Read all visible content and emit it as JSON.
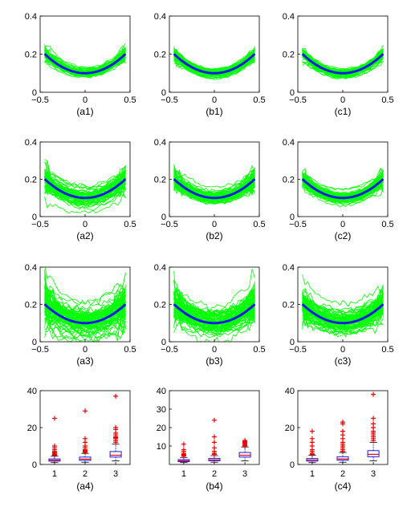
{
  "chart_data": [
    {
      "id": "a1",
      "type": "line",
      "caption": "(a1)",
      "xlim": [
        -0.5,
        0.5
      ],
      "ylim": [
        0,
        0.4
      ],
      "xticks": [
        "−0.5",
        "0",
        "0.5"
      ],
      "yticks": [
        "0",
        "0.2",
        "0.4"
      ],
      "mean_curve": {
        "x": [
          -0.45,
          -0.3,
          -0.15,
          0,
          0.15,
          0.3,
          0.45
        ],
        "y": [
          0.2,
          0.155,
          0.115,
          0.1,
          0.115,
          0.155,
          0.2
        ]
      },
      "samples": {
        "count": 60,
        "spread": 0.025,
        "color": "#00ff00"
      },
      "mean_color": "#1a1ae6"
    },
    {
      "id": "b1",
      "type": "line",
      "caption": "(b1)",
      "xlim": [
        -0.5,
        0.5
      ],
      "ylim": [
        0,
        0.4
      ],
      "xticks": [
        "−0.5",
        "0",
        "0.5"
      ],
      "yticks": [
        "0",
        "0.2",
        "0.4"
      ],
      "mean_curve": {
        "x": [
          -0.45,
          -0.3,
          -0.15,
          0,
          0.15,
          0.3,
          0.45
        ],
        "y": [
          0.2,
          0.155,
          0.115,
          0.1,
          0.115,
          0.155,
          0.2
        ]
      },
      "samples": {
        "count": 60,
        "spread": 0.02,
        "color": "#00ff00"
      },
      "mean_color": "#1a1ae6"
    },
    {
      "id": "c1",
      "type": "line",
      "caption": "(c1)",
      "xlim": [
        -0.5,
        0.5
      ],
      "ylim": [
        0,
        0.4
      ],
      "xticks": [
        "−0.5",
        "0",
        "0.5"
      ],
      "yticks": [
        "0",
        "0.2",
        "0.4"
      ],
      "mean_curve": {
        "x": [
          -0.45,
          -0.3,
          -0.15,
          0,
          0.15,
          0.3,
          0.45
        ],
        "y": [
          0.2,
          0.155,
          0.115,
          0.1,
          0.115,
          0.155,
          0.2
        ]
      },
      "samples": {
        "count": 60,
        "spread": 0.018,
        "color": "#00ff00"
      },
      "mean_color": "#1a1ae6"
    },
    {
      "id": "a2",
      "type": "line",
      "caption": "(a2)",
      "xlim": [
        -0.5,
        0.5
      ],
      "ylim": [
        0,
        0.4
      ],
      "xticks": [
        "−0.5",
        "0",
        "0.5"
      ],
      "yticks": [
        "0",
        "0.2",
        "0.4"
      ],
      "mean_curve": {
        "x": [
          -0.45,
          -0.3,
          -0.15,
          0,
          0.15,
          0.3,
          0.45
        ],
        "y": [
          0.2,
          0.155,
          0.115,
          0.1,
          0.115,
          0.155,
          0.2
        ]
      },
      "samples": {
        "count": 60,
        "spread": 0.04,
        "color": "#00ff00"
      },
      "mean_color": "#1a1ae6"
    },
    {
      "id": "b2",
      "type": "line",
      "caption": "(b2)",
      "xlim": [
        -0.5,
        0.5
      ],
      "ylim": [
        0,
        0.4
      ],
      "xticks": [
        "−0.5",
        "0",
        "0.5"
      ],
      "yticks": [
        "0",
        "0.2",
        "0.4"
      ],
      "mean_curve": {
        "x": [
          -0.45,
          -0.3,
          -0.15,
          0,
          0.15,
          0.3,
          0.45
        ],
        "y": [
          0.2,
          0.155,
          0.115,
          0.1,
          0.115,
          0.155,
          0.2
        ]
      },
      "samples": {
        "count": 60,
        "spread": 0.035,
        "color": "#00ff00"
      },
      "mean_color": "#1a1ae6"
    },
    {
      "id": "c2",
      "type": "line",
      "caption": "(c2)",
      "xlim": [
        -0.5,
        0.5
      ],
      "ylim": [
        0,
        0.4
      ],
      "xticks": [
        "−0.5",
        "0",
        "0.5"
      ],
      "yticks": [
        "0",
        "0.2",
        "0.4"
      ],
      "mean_curve": {
        "x": [
          -0.45,
          -0.3,
          -0.15,
          0,
          0.15,
          0.3,
          0.45
        ],
        "y": [
          0.2,
          0.155,
          0.115,
          0.1,
          0.115,
          0.155,
          0.2
        ]
      },
      "samples": {
        "count": 60,
        "spread": 0.028,
        "color": "#00ff00"
      },
      "mean_color": "#1a1ae6"
    },
    {
      "id": "a3",
      "type": "line",
      "caption": "(a3)",
      "xlim": [
        -0.5,
        0.5
      ],
      "ylim": [
        0,
        0.4
      ],
      "xticks": [
        "−0.5",
        "0",
        "0.5"
      ],
      "yticks": [
        "0",
        "0.2",
        "0.4"
      ],
      "mean_curve": {
        "x": [
          -0.45,
          -0.3,
          -0.15,
          0,
          0.15,
          0.3,
          0.45
        ],
        "y": [
          0.2,
          0.155,
          0.115,
          0.1,
          0.115,
          0.155,
          0.2
        ]
      },
      "samples": {
        "count": 70,
        "spread": 0.07,
        "color": "#00ff00"
      },
      "mean_color": "#1a1ae6"
    },
    {
      "id": "b3",
      "type": "line",
      "caption": "(b3)",
      "xlim": [
        -0.5,
        0.5
      ],
      "ylim": [
        0,
        0.4
      ],
      "xticks": [
        "−0.5",
        "0",
        "0.5"
      ],
      "yticks": [
        "0",
        "0.2",
        "0.4"
      ],
      "mean_curve": {
        "x": [
          -0.45,
          -0.3,
          -0.15,
          0,
          0.15,
          0.3,
          0.45
        ],
        "y": [
          0.2,
          0.155,
          0.115,
          0.1,
          0.115,
          0.155,
          0.2
        ]
      },
      "samples": {
        "count": 70,
        "spread": 0.06,
        "color": "#00ff00"
      },
      "mean_color": "#1a1ae6"
    },
    {
      "id": "c3",
      "type": "line",
      "caption": "(c3)",
      "xlim": [
        -0.5,
        0.5
      ],
      "ylim": [
        0,
        0.4
      ],
      "xticks": [
        "−0.5",
        "0",
        "0.5"
      ],
      "yticks": [
        "0",
        "0.2",
        "0.4"
      ],
      "mean_curve": {
        "x": [
          -0.45,
          -0.3,
          -0.15,
          0,
          0.15,
          0.3,
          0.45
        ],
        "y": [
          0.2,
          0.155,
          0.115,
          0.1,
          0.115,
          0.155,
          0.2
        ]
      },
      "samples": {
        "count": 70,
        "spread": 0.05,
        "color": "#00ff00"
      },
      "mean_color": "#1a1ae6"
    },
    {
      "id": "a4",
      "type": "box",
      "caption": "(a4)",
      "ylim": [
        0,
        40
      ],
      "categories": [
        "1",
        "2",
        "3"
      ],
      "yticks": [
        "0",
        "20",
        "40"
      ],
      "boxes": [
        {
          "q1": 1.8,
          "median": 2.3,
          "q3": 3.0,
          "whisker_low": 1.0,
          "whisker_high": 4.5,
          "outliers": [
            5,
            5.5,
            6,
            6.5,
            7,
            8,
            9,
            10,
            25
          ]
        },
        {
          "q1": 2.2,
          "median": 2.9,
          "q3": 4.0,
          "whisker_low": 1.2,
          "whisker_high": 6.0,
          "outliers": [
            6.5,
            7,
            7.5,
            8,
            9,
            10,
            12,
            14,
            29
          ]
        },
        {
          "q1": 4.0,
          "median": 5.0,
          "q3": 7.0,
          "whisker_low": 2.0,
          "whisker_high": 11.0,
          "outliers": [
            12,
            13,
            14,
            14.5,
            15,
            16,
            17,
            19,
            20,
            37
          ]
        }
      ]
    },
    {
      "id": "b4",
      "type": "box",
      "caption": "(b4)",
      "ylim": [
        0,
        40
      ],
      "categories": [
        "1",
        "2",
        "3"
      ],
      "yticks": [
        "10",
        "20",
        "30",
        "40"
      ],
      "boxes": [
        {
          "q1": 1.5,
          "median": 2.0,
          "q3": 2.6,
          "whisker_low": 1.0,
          "whisker_high": 3.8,
          "outliers": [
            4.5,
            5,
            5.5,
            6,
            7,
            8,
            11
          ]
        },
        {
          "q1": 2.0,
          "median": 2.5,
          "q3": 3.3,
          "whisker_low": 1.2,
          "whisker_high": 4.8,
          "outliers": [
            5.5,
            6,
            7,
            9,
            12,
            15,
            24
          ]
        },
        {
          "q1": 4.0,
          "median": 5.0,
          "q3": 6.5,
          "whisker_low": 2.0,
          "whisker_high": 9.5,
          "outliers": [
            10,
            10.5,
            11,
            11.5,
            12,
            12.5,
            13
          ]
        }
      ]
    },
    {
      "id": "c4",
      "type": "box",
      "caption": "(c4)",
      "ylim": [
        0,
        40
      ],
      "categories": [
        "1",
        "2",
        "3"
      ],
      "yticks": [
        "0",
        "20",
        "40"
      ],
      "boxes": [
        {
          "q1": 1.8,
          "median": 2.4,
          "q3": 3.2,
          "whisker_low": 1.0,
          "whisker_high": 5.0,
          "outliers": [
            5.5,
            6,
            7,
            8,
            10,
            12,
            14,
            18
          ]
        },
        {
          "q1": 2.3,
          "median": 3.0,
          "q3": 4.2,
          "whisker_low": 1.2,
          "whisker_high": 6.5,
          "outliers": [
            7,
            8,
            9,
            10,
            11,
            12,
            14,
            16,
            18,
            22,
            23
          ]
        },
        {
          "q1": 4.2,
          "median": 5.5,
          "q3": 7.5,
          "whisker_low": 2.0,
          "whisker_high": 12.0,
          "outliers": [
            13,
            14,
            15,
            16,
            17,
            18,
            20,
            22,
            25,
            38
          ]
        }
      ]
    }
  ]
}
